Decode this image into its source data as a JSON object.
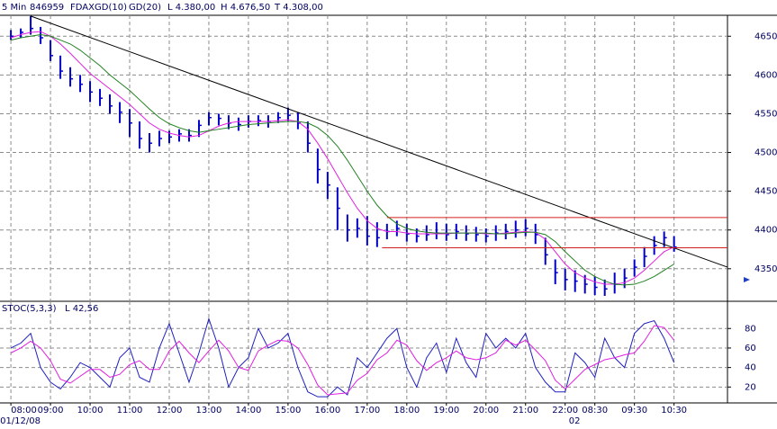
{
  "chart_data": [
    {
      "type": "ohlc",
      "header": [
        "5 Min",
        "846959",
        "FDAX"
      ],
      "stats": [
        "L 4.380,00",
        "H 4.676,50",
        "T 4.308,00"
      ],
      "color": "#0000c8",
      "high": [
        4658,
        4660,
        4676,
        4662,
        4645,
        4625,
        4610,
        4600,
        4592,
        4582,
        4575,
        4565,
        4556,
        4540,
        4525,
        4528,
        4528,
        4530,
        4530,
        4542,
        4552,
        4550,
        4548,
        4545,
        4548,
        4548,
        4548,
        4552,
        4558,
        4552,
        4540,
        4505,
        4475,
        4455,
        4420,
        4415,
        4418,
        4410,
        4408,
        4412,
        4408,
        4402,
        4406,
        4410,
        4408,
        4408,
        4406,
        4404,
        4402,
        4406,
        4408,
        4412,
        4414,
        4408,
        4390,
        4362,
        4350,
        4348,
        4342,
        4340,
        4336,
        4345,
        4350,
        4362,
        4378,
        4392,
        4398,
        4392
      ],
      "low": [
        4645,
        4648,
        4652,
        4640,
        4618,
        4595,
        4585,
        4578,
        4565,
        4560,
        4550,
        4538,
        4520,
        4505,
        4500,
        4508,
        4512,
        4514,
        4514,
        4520,
        4535,
        4535,
        4530,
        4528,
        4532,
        4534,
        4532,
        4538,
        4540,
        4530,
        4500,
        4460,
        4440,
        4400,
        4385,
        4390,
        4380,
        4378,
        4388,
        4392,
        4385,
        4384,
        4386,
        4388,
        4386,
        4388,
        4386,
        4385,
        4384,
        4386,
        4388,
        4390,
        4392,
        4382,
        4355,
        4330,
        4322,
        4320,
        4318,
        4316,
        4315,
        4318,
        4325,
        4340,
        4352,
        4368,
        4378,
        4372
      ],
      "close": [
        4650,
        4655,
        4660,
        4648,
        4625,
        4605,
        4595,
        4588,
        4578,
        4570,
        4560,
        4552,
        4538,
        4518,
        4512,
        4518,
        4520,
        4524,
        4522,
        4535,
        4545,
        4544,
        4538,
        4536,
        4540,
        4541,
        4540,
        4545,
        4548,
        4538,
        4512,
        4478,
        4458,
        4428,
        4400,
        4402,
        4392,
        4390,
        4398,
        4402,
        4395,
        4392,
        4394,
        4396,
        4394,
        4398,
        4395,
        4394,
        4392,
        4396,
        4398,
        4400,
        4402,
        4394,
        4368,
        4345,
        4336,
        4334,
        4330,
        4326,
        4324,
        4330,
        4338,
        4352,
        4366,
        4380,
        4390,
        4378
      ],
      "series": [
        {
          "name": "GD(10)",
          "color": "#e020e0",
          "values": [
            4648,
            4652,
            4655,
            4656,
            4650,
            4640,
            4628,
            4615,
            4602,
            4592,
            4582,
            4572,
            4562,
            4550,
            4538,
            4530,
            4525,
            4522,
            4520,
            4522,
            4528,
            4534,
            4538,
            4540,
            4540,
            4540,
            4540,
            4541,
            4542,
            4540,
            4530,
            4512,
            4492,
            4470,
            4448,
            4428,
            4412,
            4402,
            4398,
            4398,
            4396,
            4395,
            4395,
            4395,
            4395,
            4396,
            4396,
            4396,
            4395,
            4395,
            4396,
            4397,
            4398,
            4397,
            4388,
            4372,
            4356,
            4345,
            4338,
            4333,
            4330,
            4330,
            4332,
            4338,
            4348,
            4360,
            4372,
            4378
          ]
        },
        {
          "name": "GD(20)",
          "color": "#208020",
          "values": [
            4645,
            4648,
            4650,
            4652,
            4650,
            4645,
            4640,
            4632,
            4622,
            4612,
            4600,
            4590,
            4580,
            4568,
            4556,
            4545,
            4537,
            4532,
            4528,
            4526,
            4528,
            4530,
            4532,
            4534,
            4536,
            4537,
            4538,
            4539,
            4540,
            4540,
            4538,
            4532,
            4522,
            4508,
            4490,
            4470,
            4450,
            4432,
            4418,
            4408,
            4402,
            4399,
            4397,
            4396,
            4396,
            4396,
            4396,
            4396,
            4396,
            4395,
            4395,
            4396,
            4397,
            4397,
            4394,
            4385,
            4372,
            4360,
            4348,
            4340,
            4334,
            4330,
            4329,
            4330,
            4334,
            4340,
            4348,
            4356
          ]
        }
      ],
      "trendline": {
        "color": "#000000",
        "x": [
          2,
          72.4
        ],
        "y": [
          4676,
          4352
        ]
      },
      "levels": [
        {
          "value": 4416,
          "from": 38,
          "color": "#d02020"
        },
        {
          "value": 4377,
          "from": 37.5,
          "color": "#d02020"
        }
      ],
      "xlim": [
        -1.1,
        72.4
      ],
      "ylim": [
        4308,
        4677
      ],
      "yticks": [
        4350,
        4400,
        4450,
        4500,
        4550,
        4600,
        4650
      ],
      "grid": true
    },
    {
      "type": "line",
      "title": "STOC(5,3,3)",
      "stats": [
        "L 42,56"
      ],
      "categories": [
        "08:00",
        null,
        null,
        null,
        "09:00",
        null,
        null,
        null,
        "10:00",
        null,
        null,
        null,
        "11:00",
        null,
        null,
        null,
        "12:00",
        null,
        null,
        null,
        "13:00",
        null,
        null,
        null,
        "14:00",
        null,
        null,
        null,
        "15:00",
        null,
        null,
        null,
        "16:00",
        null,
        null,
        null,
        "17:00",
        null,
        null,
        null,
        "18:00",
        null,
        null,
        null,
        "19:00",
        null,
        null,
        null,
        "20:00",
        null,
        null,
        null,
        "21:00",
        null,
        null,
        null,
        "22:00",
        null,
        null,
        "08:30",
        null,
        null,
        null,
        "09:30",
        null,
        null,
        null,
        "10:30"
      ],
      "sublabels": [
        "01/12/08",
        null,
        null,
        null,
        null,
        null,
        null,
        null,
        null,
        null,
        null,
        null,
        null,
        null,
        null,
        null,
        null,
        null,
        null,
        null,
        null,
        null,
        null,
        null,
        null,
        null,
        null,
        null,
        null,
        null,
        null,
        null,
        null,
        null,
        null,
        null,
        null,
        null,
        null,
        null,
        null,
        null,
        null,
        null,
        null,
        null,
        null,
        null,
        null,
        null,
        null,
        null,
        null,
        null,
        null,
        null,
        null,
        "02",
        null,
        null,
        null,
        null,
        null,
        null,
        null,
        null,
        null,
        null
      ],
      "series": [
        {
          "color": "#2020c0",
          "values": [
            60,
            65,
            75,
            40,
            25,
            18,
            30,
            45,
            40,
            30,
            20,
            50,
            60,
            30,
            25,
            60,
            85,
            55,
            25,
            55,
            90,
            60,
            20,
            40,
            50,
            80,
            60,
            65,
            75,
            40,
            15,
            10,
            10,
            20,
            12,
            50,
            40,
            55,
            70,
            80,
            40,
            20,
            50,
            65,
            35,
            70,
            45,
            30,
            75,
            60,
            70,
            60,
            75,
            40,
            25,
            15,
            15,
            55,
            45,
            30,
            70,
            50,
            40,
            75,
            85,
            88,
            70,
            45
          ]
        },
        {
          "color": "#e020e0",
          "values": [
            55,
            60,
            67,
            60,
            47,
            28,
            24,
            31,
            38,
            38,
            30,
            33,
            43,
            47,
            38,
            38,
            57,
            67,
            55,
            45,
            57,
            68,
            57,
            40,
            37,
            57,
            63,
            68,
            67,
            60,
            43,
            22,
            12,
            13,
            14,
            27,
            34,
            48,
            55,
            68,
            63,
            47,
            37,
            45,
            50,
            57,
            50,
            48,
            50,
            55,
            68,
            63,
            68,
            58,
            47,
            27,
            18,
            28,
            38,
            43,
            48,
            50,
            53,
            55,
            67,
            83,
            81,
            68
          ]
        }
      ],
      "xlim": [
        -1.1,
        72.4
      ],
      "ylim": [
        3.7,
        107.9
      ],
      "yticks": [
        20,
        40,
        60,
        80
      ],
      "grid": true
    }
  ]
}
